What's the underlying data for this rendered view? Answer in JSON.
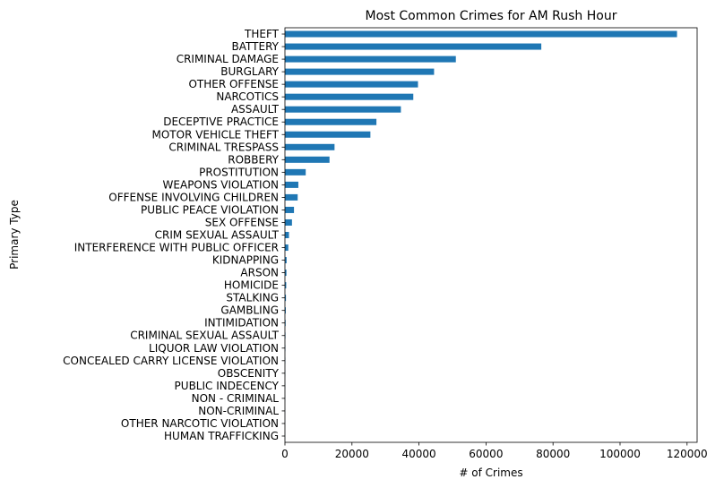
{
  "chart_data": {
    "type": "bar",
    "orientation": "horizontal",
    "title": "Most Common Crimes for AM Rush Hour",
    "xlabel": "# of Crimes",
    "ylabel": "Primary Type",
    "xlim": [
      0,
      123000
    ],
    "xticks": [
      0,
      20000,
      40000,
      60000,
      80000,
      100000,
      120000
    ],
    "grid": false,
    "bar_color": "#1f77b4",
    "categories": [
      "THEFT",
      "BATTERY",
      "CRIMINAL DAMAGE",
      "BURGLARY",
      "OTHER OFFENSE",
      "NARCOTICS",
      "ASSAULT",
      "DECEPTIVE PRACTICE",
      "MOTOR VEHICLE THEFT",
      "CRIMINAL TRESPASS",
      "ROBBERY",
      "PROSTITUTION",
      "WEAPONS VIOLATION",
      "OFFENSE INVOLVING CHILDREN",
      "PUBLIC PEACE VIOLATION",
      "SEX OFFENSE",
      "CRIM SEXUAL ASSAULT",
      "INTERFERENCE WITH PUBLIC OFFICER",
      "KIDNAPPING",
      "ARSON",
      "HOMICIDE",
      "STALKING",
      "GAMBLING",
      "INTIMIDATION",
      "CRIMINAL SEXUAL ASSAULT",
      "LIQUOR LAW VIOLATION",
      "CONCEALED CARRY LICENSE VIOLATION",
      "OBSCENITY",
      "PUBLIC INDECENCY",
      "NON - CRIMINAL",
      "NON-CRIMINAL",
      "OTHER NARCOTIC VIOLATION",
      "HUMAN TRAFFICKING"
    ],
    "values": [
      117000,
      76500,
      51000,
      44500,
      39700,
      38300,
      34600,
      27300,
      25500,
      14800,
      13300,
      6200,
      4000,
      3800,
      2700,
      2100,
      1200,
      1000,
      500,
      450,
      380,
      300,
      250,
      200,
      150,
      120,
      100,
      70,
      50,
      30,
      25,
      20,
      15
    ]
  }
}
